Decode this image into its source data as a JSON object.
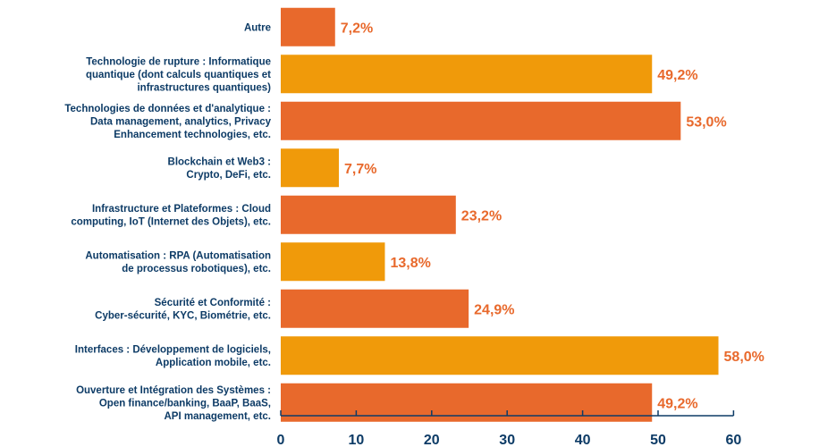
{
  "chart_data": {
    "type": "bar",
    "orientation": "horizontal",
    "title": "",
    "xlabel": "",
    "ylabel": "",
    "xlim": [
      0,
      60
    ],
    "xticks": [
      0,
      10,
      20,
      30,
      40,
      50,
      60
    ],
    "grid": false,
    "categories": [
      [
        "Autre"
      ],
      [
        "Technologie de rupture : Informatique",
        "quantique (dont calculs quantiques et",
        "infrastructures quantiques)"
      ],
      [
        "Technologies de données et d'analytique :",
        "Data management, analytics, Privacy",
        "Enhancement technologies, etc."
      ],
      [
        "Blockchain et Web3 :",
        "Crypto, DeFi, etc."
      ],
      [
        "Infrastructure et Plateformes : Cloud",
        "computing, IoT (Internet des Objets), etc."
      ],
      [
        "Automatisation : RPA (Automatisation",
        "de processus robotiques), etc."
      ],
      [
        "Sécurité et Conformité :",
        "Cyber-sécurité, KYC, Biométrie, etc."
      ],
      [
        "Interfaces : Développement de logiciels,",
        "Application mobile, etc."
      ],
      [
        "Ouverture et Intégration des Systèmes :",
        "Open finance/banking, BaaP, BaaS,",
        "API management, etc."
      ]
    ],
    "values": [
      7.2,
      49.2,
      53.0,
      7.7,
      23.2,
      13.8,
      24.9,
      58.0,
      49.2
    ],
    "value_labels": [
      "7,2%",
      "49,2%",
      "53,0%",
      "7,7%",
      "23,2%",
      "13,8%",
      "24,9%",
      "58,0%",
      "49,2%"
    ],
    "colors": {
      "orange": "#e8692c",
      "amber": "#f09a0a",
      "label_text": "#0d3b66",
      "value_text": "#e8692c",
      "axis": "#0d3b66"
    },
    "bar_color_pattern": [
      "orange",
      "amber",
      "orange",
      "amber",
      "orange",
      "amber",
      "orange",
      "amber",
      "orange"
    ]
  }
}
